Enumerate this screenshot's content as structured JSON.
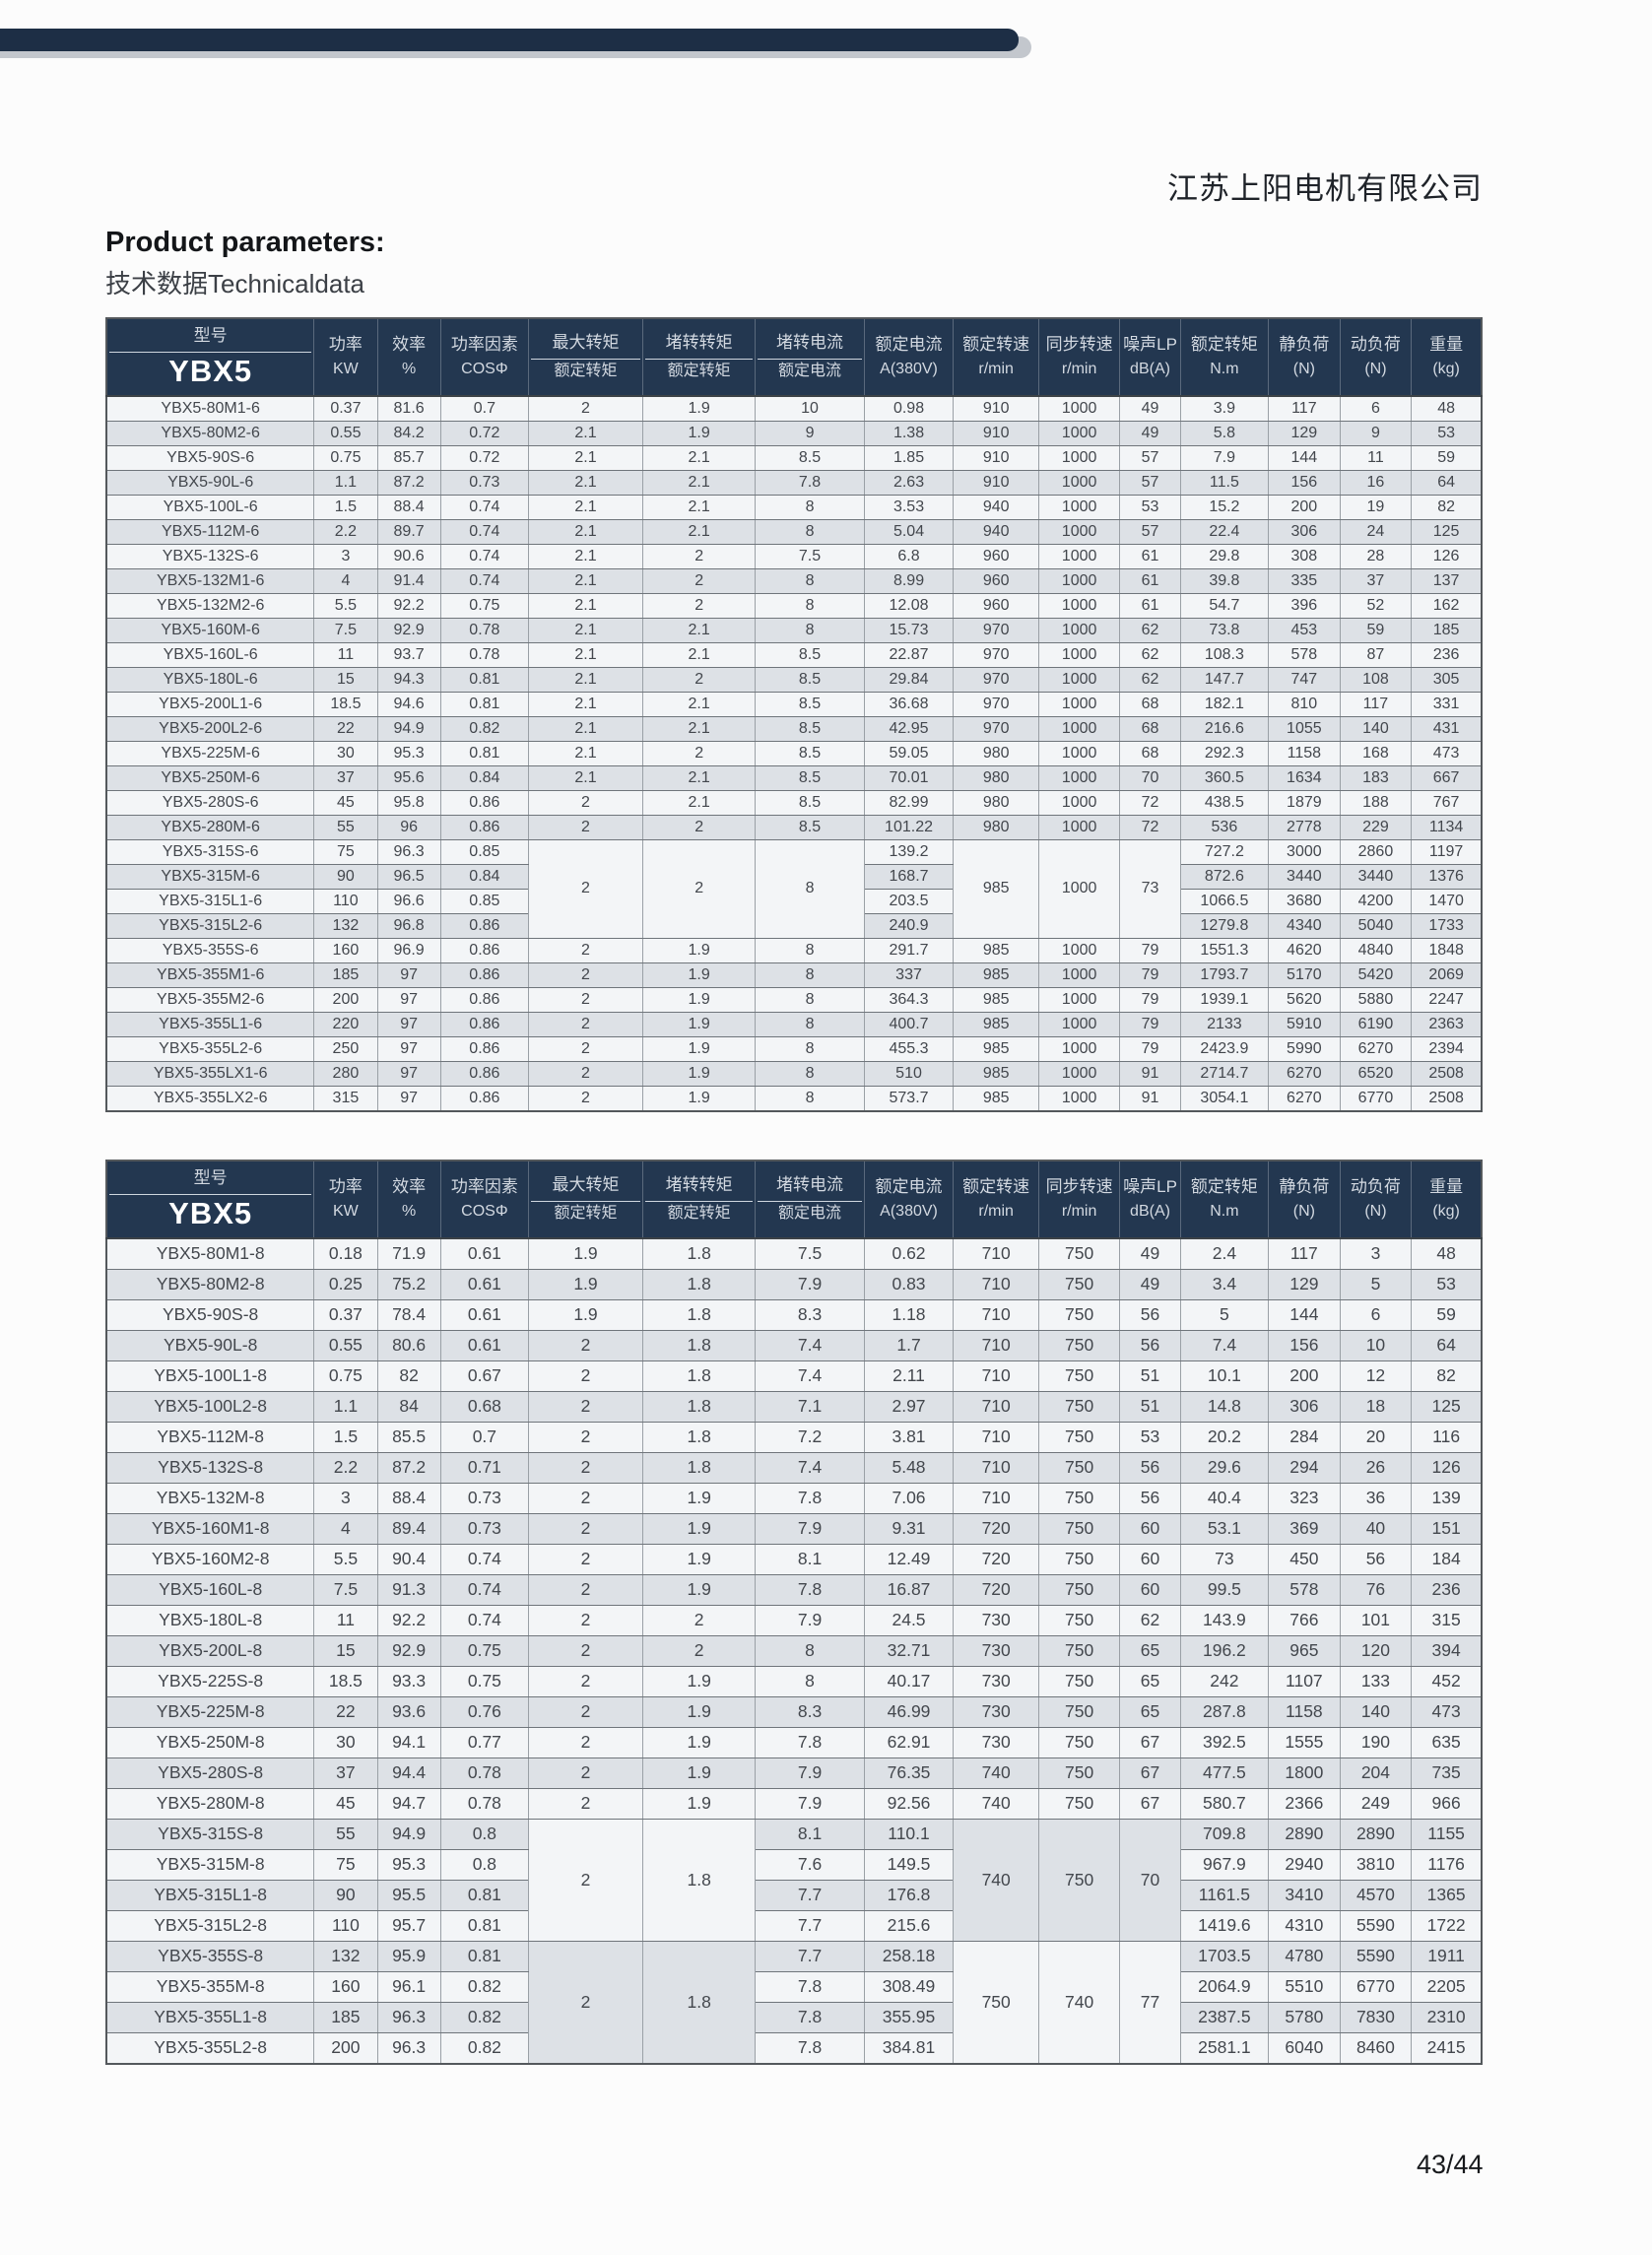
{
  "page": {
    "company": "江苏上阳电机有限公司",
    "title": "Product parameters:",
    "subtitle": "技术数据Technicaldata",
    "page_number": "43/44"
  },
  "colors": {
    "header_bg": "#233750",
    "topbar": "#1d2e45",
    "row_light": "#f3f5f7",
    "row_gray": "#dde1e6"
  },
  "layout": {
    "col_widths": [
      15.1,
      4.6,
      4.6,
      6.4,
      8.3,
      8.2,
      7.9,
      6.5,
      6.2,
      5.9,
      4.4,
      6.4,
      5.2,
      5.2,
      5.1
    ]
  },
  "header_columns": [
    {
      "top": "型号",
      "bottom": "YBX5",
      "divider": true,
      "model": true
    },
    {
      "top": "功率",
      "bottom": "KW",
      "divider": false
    },
    {
      "top": "效率",
      "bottom": "%",
      "divider": false
    },
    {
      "top": "功率因素",
      "bottom": "COSΦ",
      "divider": false
    },
    {
      "top": "最大转矩",
      "bottom": "额定转矩",
      "divider": true
    },
    {
      "top": "堵转转矩",
      "bottom": "额定转矩",
      "divider": true
    },
    {
      "top": "堵转电流",
      "bottom": "额定电流",
      "divider": true
    },
    {
      "top": "额定电流",
      "bottom": "A(380V)",
      "divider": false
    },
    {
      "top": "额定转速",
      "bottom": "r/min",
      "divider": false
    },
    {
      "top": "同步转速",
      "bottom": "r/min",
      "divider": false
    },
    {
      "top": "噪声LP",
      "bottom": "dB(A)",
      "divider": false
    },
    {
      "top": "额定转矩",
      "bottom": "N.m",
      "divider": false
    },
    {
      "top": "静负荷",
      "bottom": "(N)",
      "divider": false
    },
    {
      "top": "动负荷",
      "bottom": "(N)",
      "divider": false
    },
    {
      "top": "重量",
      "bottom": "(kg)",
      "divider": false
    }
  ],
  "tables": [
    {
      "name": "YBX5 6-pole technical data",
      "cls": "t1",
      "rows": [
        [
          "YBX5-80M1-6",
          "0.37",
          "81.6",
          "0.7",
          "2",
          "1.9",
          "10",
          "0.98",
          "910",
          "1000",
          "49",
          "3.9",
          "117",
          "6",
          "48"
        ],
        [
          "YBX5-80M2-6",
          "0.55",
          "84.2",
          "0.72",
          "2.1",
          "1.9",
          "9",
          "1.38",
          "910",
          "1000",
          "49",
          "5.8",
          "129",
          "9",
          "53"
        ],
        [
          "YBX5-90S-6",
          "0.75",
          "85.7",
          "0.72",
          "2.1",
          "2.1",
          "8.5",
          "1.85",
          "910",
          "1000",
          "57",
          "7.9",
          "144",
          "11",
          "59"
        ],
        [
          "YBX5-90L-6",
          "1.1",
          "87.2",
          "0.73",
          "2.1",
          "2.1",
          "7.8",
          "2.63",
          "910",
          "1000",
          "57",
          "11.5",
          "156",
          "16",
          "64"
        ],
        [
          "YBX5-100L-6",
          "1.5",
          "88.4",
          "0.74",
          "2.1",
          "2.1",
          "8",
          "3.53",
          "940",
          "1000",
          "53",
          "15.2",
          "200",
          "19",
          "82"
        ],
        [
          "YBX5-112M-6",
          "2.2",
          "89.7",
          "0.74",
          "2.1",
          "2.1",
          "8",
          "5.04",
          "940",
          "1000",
          "57",
          "22.4",
          "306",
          "24",
          "125"
        ],
        [
          "YBX5-132S-6",
          "3",
          "90.6",
          "0.74",
          "2.1",
          "2",
          "7.5",
          "6.8",
          "960",
          "1000",
          "61",
          "29.8",
          "308",
          "28",
          "126"
        ],
        [
          "YBX5-132M1-6",
          "4",
          "91.4",
          "0.74",
          "2.1",
          "2",
          "8",
          "8.99",
          "960",
          "1000",
          "61",
          "39.8",
          "335",
          "37",
          "137"
        ],
        [
          "YBX5-132M2-6",
          "5.5",
          "92.2",
          "0.75",
          "2.1",
          "2",
          "8",
          "12.08",
          "960",
          "1000",
          "61",
          "54.7",
          "396",
          "52",
          "162"
        ],
        [
          "YBX5-160M-6",
          "7.5",
          "92.9",
          "0.78",
          "2.1",
          "2.1",
          "8",
          "15.73",
          "970",
          "1000",
          "62",
          "73.8",
          "453",
          "59",
          "185"
        ],
        [
          "YBX5-160L-6",
          "11",
          "93.7",
          "0.78",
          "2.1",
          "2.1",
          "8.5",
          "22.87",
          "970",
          "1000",
          "62",
          "108.3",
          "578",
          "87",
          "236"
        ],
        [
          "YBX5-180L-6",
          "15",
          "94.3",
          "0.81",
          "2.1",
          "2",
          "8.5",
          "29.84",
          "970",
          "1000",
          "62",
          "147.7",
          "747",
          "108",
          "305"
        ],
        [
          "YBX5-200L1-6",
          "18.5",
          "94.6",
          "0.81",
          "2.1",
          "2.1",
          "8.5",
          "36.68",
          "970",
          "1000",
          "68",
          "182.1",
          "810",
          "117",
          "331"
        ],
        [
          "YBX5-200L2-6",
          "22",
          "94.9",
          "0.82",
          "2.1",
          "2.1",
          "8.5",
          "42.95",
          "970",
          "1000",
          "68",
          "216.6",
          "1055",
          "140",
          "431"
        ],
        [
          "YBX5-225M-6",
          "30",
          "95.3",
          "0.81",
          "2.1",
          "2",
          "8.5",
          "59.05",
          "980",
          "1000",
          "68",
          "292.3",
          "1158",
          "168",
          "473"
        ],
        [
          "YBX5-250M-6",
          "37",
          "95.6",
          "0.84",
          "2.1",
          "2.1",
          "8.5",
          "70.01",
          "980",
          "1000",
          "70",
          "360.5",
          "1634",
          "183",
          "667"
        ],
        [
          "YBX5-280S-6",
          "45",
          "95.8",
          "0.86",
          "2",
          "2.1",
          "8.5",
          "82.99",
          "980",
          "1000",
          "72",
          "438.5",
          "1879",
          "188",
          "767"
        ],
        [
          "YBX5-280M-6",
          "55",
          "96",
          "0.86",
          "2",
          "2",
          "8.5",
          "101.22",
          "980",
          "1000",
          "72",
          "536",
          "2778",
          "229",
          "1134"
        ],
        [
          "YBX5-315S-6",
          "75",
          "96.3",
          "0.85",
          "2",
          "2",
          "8",
          "139.2",
          "985",
          "1000",
          "73",
          "727.2",
          "3000",
          "2860",
          "1197"
        ],
        [
          "YBX5-315M-6",
          "90",
          "96.5",
          "0.84",
          null,
          null,
          null,
          "168.7",
          null,
          null,
          null,
          "872.6",
          "3440",
          "3440",
          "1376"
        ],
        [
          "YBX5-315L1-6",
          "110",
          "96.6",
          "0.85",
          null,
          null,
          null,
          "203.5",
          null,
          null,
          null,
          "1066.5",
          "3680",
          "4200",
          "1470"
        ],
        [
          "YBX5-315L2-6",
          "132",
          "96.8",
          "0.86",
          null,
          null,
          null,
          "240.9",
          null,
          null,
          null,
          "1279.8",
          "4340",
          "5040",
          "1733"
        ],
        [
          "YBX5-355S-6",
          "160",
          "96.9",
          "0.86",
          "2",
          "1.9",
          "8",
          "291.7",
          "985",
          "1000",
          "79",
          "1551.3",
          "4620",
          "4840",
          "1848"
        ],
        [
          "YBX5-355M1-6",
          "185",
          "97",
          "0.86",
          "2",
          "1.9",
          "8",
          "337",
          "985",
          "1000",
          "79",
          "1793.7",
          "5170",
          "5420",
          "2069"
        ],
        [
          "YBX5-355M2-6",
          "200",
          "97",
          "0.86",
          "2",
          "1.9",
          "8",
          "364.3",
          "985",
          "1000",
          "79",
          "1939.1",
          "5620",
          "5880",
          "2247"
        ],
        [
          "YBX5-355L1-6",
          "220",
          "97",
          "0.86",
          "2",
          "1.9",
          "8",
          "400.7",
          "985",
          "1000",
          "79",
          "2133",
          "5910",
          "6190",
          "2363"
        ],
        [
          "YBX5-355L2-6",
          "250",
          "97",
          "0.86",
          "2",
          "1.9",
          "8",
          "455.3",
          "985",
          "1000",
          "79",
          "2423.9",
          "5990",
          "6270",
          "2394"
        ],
        [
          "YBX5-355LX1-6",
          "280",
          "97",
          "0.86",
          "2",
          "1.9",
          "8",
          "510",
          "985",
          "1000",
          "91",
          "2714.7",
          "6270",
          "6520",
          "2508"
        ],
        [
          "YBX5-355LX2-6",
          "315",
          "97",
          "0.86",
          "2",
          "1.9",
          "8",
          "573.7",
          "985",
          "1000",
          "91",
          "3054.1",
          "6270",
          "6770",
          "2508"
        ]
      ],
      "spans": {
        "18-4": {
          "span": 4,
          "bg": "light"
        },
        "18-5": {
          "span": 4,
          "bg": "light"
        },
        "18-6": {
          "span": 4,
          "bg": "light"
        },
        "18-8": {
          "span": 4,
          "bg": "light"
        },
        "18-9": {
          "span": 4,
          "bg": "light"
        },
        "18-10": {
          "span": 4,
          "bg": "light"
        }
      }
    },
    {
      "name": "YBX5 8-pole technical data",
      "cls": "t2",
      "rows": [
        [
          "YBX5-80M1-8",
          "0.18",
          "71.9",
          "0.61",
          "1.9",
          "1.8",
          "7.5",
          "0.62",
          "710",
          "750",
          "49",
          "2.4",
          "117",
          "3",
          "48"
        ],
        [
          "YBX5-80M2-8",
          "0.25",
          "75.2",
          "0.61",
          "1.9",
          "1.8",
          "7.9",
          "0.83",
          "710",
          "750",
          "49",
          "3.4",
          "129",
          "5",
          "53"
        ],
        [
          "YBX5-90S-8",
          "0.37",
          "78.4",
          "0.61",
          "1.9",
          "1.8",
          "8.3",
          "1.18",
          "710",
          "750",
          "56",
          "5",
          "144",
          "6",
          "59"
        ],
        [
          "YBX5-90L-8",
          "0.55",
          "80.6",
          "0.61",
          "2",
          "1.8",
          "7.4",
          "1.7",
          "710",
          "750",
          "56",
          "7.4",
          "156",
          "10",
          "64"
        ],
        [
          "YBX5-100L1-8",
          "0.75",
          "82",
          "0.67",
          "2",
          "1.8",
          "7.4",
          "2.11",
          "710",
          "750",
          "51",
          "10.1",
          "200",
          "12",
          "82"
        ],
        [
          "YBX5-100L2-8",
          "1.1",
          "84",
          "0.68",
          "2",
          "1.8",
          "7.1",
          "2.97",
          "710",
          "750",
          "51",
          "14.8",
          "306",
          "18",
          "125"
        ],
        [
          "YBX5-112M-8",
          "1.5",
          "85.5",
          "0.7",
          "2",
          "1.8",
          "7.2",
          "3.81",
          "710",
          "750",
          "53",
          "20.2",
          "284",
          "20",
          "116"
        ],
        [
          "YBX5-132S-8",
          "2.2",
          "87.2",
          "0.71",
          "2",
          "1.8",
          "7.4",
          "5.48",
          "710",
          "750",
          "56",
          "29.6",
          "294",
          "26",
          "126"
        ],
        [
          "YBX5-132M-8",
          "3",
          "88.4",
          "0.73",
          "2",
          "1.9",
          "7.8",
          "7.06",
          "710",
          "750",
          "56",
          "40.4",
          "323",
          "36",
          "139"
        ],
        [
          "YBX5-160M1-8",
          "4",
          "89.4",
          "0.73",
          "2",
          "1.9",
          "7.9",
          "9.31",
          "720",
          "750",
          "60",
          "53.1",
          "369",
          "40",
          "151"
        ],
        [
          "YBX5-160M2-8",
          "5.5",
          "90.4",
          "0.74",
          "2",
          "1.9",
          "8.1",
          "12.49",
          "720",
          "750",
          "60",
          "73",
          "450",
          "56",
          "184"
        ],
        [
          "YBX5-160L-8",
          "7.5",
          "91.3",
          "0.74",
          "2",
          "1.9",
          "7.8",
          "16.87",
          "720",
          "750",
          "60",
          "99.5",
          "578",
          "76",
          "236"
        ],
        [
          "YBX5-180L-8",
          "11",
          "92.2",
          "0.74",
          "2",
          "2",
          "7.9",
          "24.5",
          "730",
          "750",
          "62",
          "143.9",
          "766",
          "101",
          "315"
        ],
        [
          "YBX5-200L-8",
          "15",
          "92.9",
          "0.75",
          "2",
          "2",
          "8",
          "32.71",
          "730",
          "750",
          "65",
          "196.2",
          "965",
          "120",
          "394"
        ],
        [
          "YBX5-225S-8",
          "18.5",
          "93.3",
          "0.75",
          "2",
          "1.9",
          "8",
          "40.17",
          "730",
          "750",
          "65",
          "242",
          "1107",
          "133",
          "452"
        ],
        [
          "YBX5-225M-8",
          "22",
          "93.6",
          "0.76",
          "2",
          "1.9",
          "8.3",
          "46.99",
          "730",
          "750",
          "65",
          "287.8",
          "1158",
          "140",
          "473"
        ],
        [
          "YBX5-250M-8",
          "30",
          "94.1",
          "0.77",
          "2",
          "1.9",
          "7.8",
          "62.91",
          "730",
          "750",
          "67",
          "392.5",
          "1555",
          "190",
          "635"
        ],
        [
          "YBX5-280S-8",
          "37",
          "94.4",
          "0.78",
          "2",
          "1.9",
          "7.9",
          "76.35",
          "740",
          "750",
          "67",
          "477.5",
          "1800",
          "204",
          "735"
        ],
        [
          "YBX5-280M-8",
          "45",
          "94.7",
          "0.78",
          "2",
          "1.9",
          "7.9",
          "92.56",
          "740",
          "750",
          "67",
          "580.7",
          "2366",
          "249",
          "966"
        ],
        [
          "YBX5-315S-8",
          "55",
          "94.9",
          "0.8",
          "2",
          "1.8",
          "8.1",
          "110.1",
          "740",
          "750",
          "70",
          "709.8",
          "2890",
          "2890",
          "1155"
        ],
        [
          "YBX5-315M-8",
          "75",
          "95.3",
          "0.8",
          null,
          null,
          "7.6",
          "149.5",
          null,
          null,
          null,
          "967.9",
          "2940",
          "3810",
          "1176"
        ],
        [
          "YBX5-315L1-8",
          "90",
          "95.5",
          "0.81",
          null,
          null,
          "7.7",
          "176.8",
          null,
          null,
          null,
          "1161.5",
          "3410",
          "4570",
          "1365"
        ],
        [
          "YBX5-315L2-8",
          "110",
          "95.7",
          "0.81",
          null,
          null,
          "7.7",
          "215.6",
          null,
          null,
          null,
          "1419.6",
          "4310",
          "5590",
          "1722"
        ],
        [
          "YBX5-355S-8",
          "132",
          "95.9",
          "0.81",
          "2",
          "1.8",
          "7.7",
          "258.18",
          "750",
          "740",
          "77",
          "1703.5",
          "4780",
          "5590",
          "1911"
        ],
        [
          "YBX5-355M-8",
          "160",
          "96.1",
          "0.82",
          null,
          null,
          "7.8",
          "308.49",
          null,
          null,
          null,
          "2064.9",
          "5510",
          "6770",
          "2205"
        ],
        [
          "YBX5-355L1-8",
          "185",
          "96.3",
          "0.82",
          null,
          null,
          "7.8",
          "355.95",
          null,
          null,
          null,
          "2387.5",
          "5780",
          "7830",
          "2310"
        ],
        [
          "YBX5-355L2-8",
          "200",
          "96.3",
          "0.82",
          null,
          null,
          "7.8",
          "384.81",
          null,
          null,
          null,
          "2581.1",
          "6040",
          "8460",
          "2415"
        ]
      ],
      "spans": {
        "19-4": {
          "span": 4,
          "bg": "light"
        },
        "19-5": {
          "span": 4,
          "bg": "light"
        },
        "19-8": {
          "span": 4,
          "bg": "gray"
        },
        "19-9": {
          "span": 4,
          "bg": "gray"
        },
        "19-10": {
          "span": 4,
          "bg": "gray"
        },
        "23-4": {
          "span": 4,
          "bg": "gray"
        },
        "23-5": {
          "span": 4,
          "bg": "gray"
        },
        "23-8": {
          "span": 4,
          "bg": "light"
        },
        "23-9": {
          "span": 4,
          "bg": "light"
        },
        "23-10": {
          "span": 4,
          "bg": "light"
        }
      }
    }
  ]
}
